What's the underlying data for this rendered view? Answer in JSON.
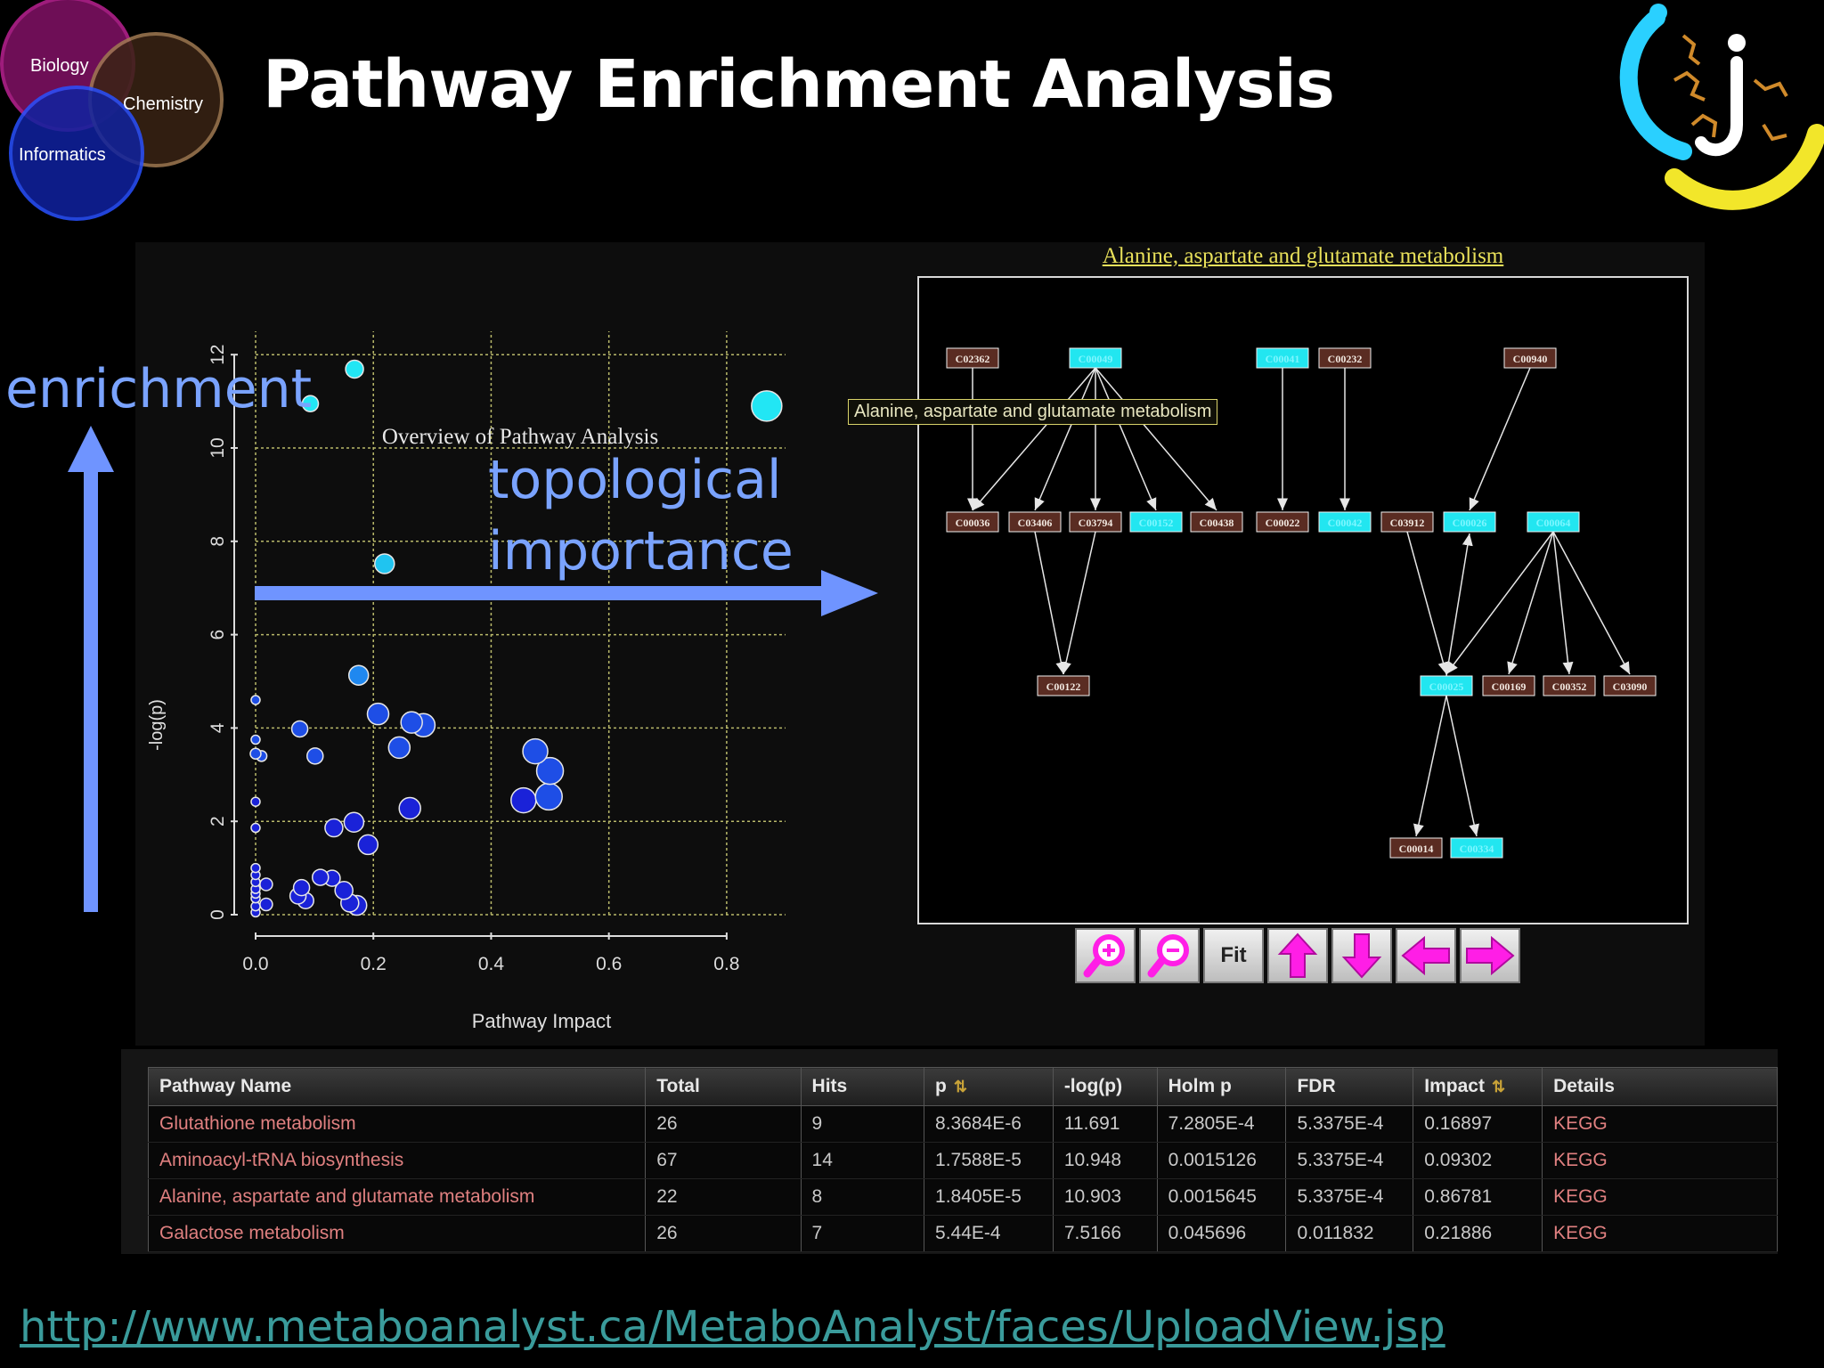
{
  "slide": {
    "title": "Pathway Enrichment Analysis",
    "url": "http://www.metaboanalyst.ca/MetaboAnalyst/faces/UploadView.jsp"
  },
  "venn": {
    "circles": [
      {
        "label": "Biology",
        "color": "#b0208a"
      },
      {
        "label": "Chemistry",
        "color": "#6b4a2a"
      },
      {
        "label": "Informatics",
        "color": "#1e3fd8"
      }
    ]
  },
  "annotations": {
    "enrichment": "enrichment",
    "topological_line1": "topological",
    "topological_line2": "importance",
    "arrow_color": "#6f94ff"
  },
  "chart_data": {
    "type": "scatter",
    "title": "Overview of Pathway Analysis",
    "xlabel": "Pathway Impact",
    "ylabel": "-log(p)",
    "xlim": [
      0,
      0.9
    ],
    "ylim": [
      0,
      12.5
    ],
    "xticks": [
      "0.0",
      "0.2",
      "0.4",
      "0.6",
      "0.8"
    ],
    "yticks": [
      "0",
      "2",
      "4",
      "6",
      "8",
      "10",
      "12"
    ],
    "grid": true,
    "points": [
      {
        "x": 0.168,
        "y": 11.69,
        "s": 10
      },
      {
        "x": 0.093,
        "y": 10.95,
        "s": 9
      },
      {
        "x": 0.868,
        "y": 10.9,
        "s": 17
      },
      {
        "x": 0.219,
        "y": 7.52,
        "s": 11
      },
      {
        "x": 0.175,
        "y": 5.13,
        "s": 11
      },
      {
        "x": 0.0,
        "y": 4.6,
        "s": 5
      },
      {
        "x": 0.208,
        "y": 4.3,
        "s": 12
      },
      {
        "x": 0.265,
        "y": 4.12,
        "s": 12
      },
      {
        "x": 0.285,
        "y": 4.06,
        "s": 13
      },
      {
        "x": 0.075,
        "y": 3.98,
        "s": 9
      },
      {
        "x": 0.0,
        "y": 3.75,
        "s": 5
      },
      {
        "x": 0.244,
        "y": 3.58,
        "s": 12
      },
      {
        "x": 0.475,
        "y": 3.5,
        "s": 14
      },
      {
        "x": 0.0,
        "y": 3.45,
        "s": 6
      },
      {
        "x": 0.01,
        "y": 3.4,
        "s": 6
      },
      {
        "x": 0.101,
        "y": 3.4,
        "s": 9
      },
      {
        "x": 0.5,
        "y": 3.08,
        "s": 15
      },
      {
        "x": 0.498,
        "y": 2.53,
        "s": 15
      },
      {
        "x": 0.455,
        "y": 2.45,
        "s": 14
      },
      {
        "x": 0.0,
        "y": 2.42,
        "s": 5
      },
      {
        "x": 0.262,
        "y": 2.28,
        "s": 12
      },
      {
        "x": 0.167,
        "y": 1.98,
        "s": 11
      },
      {
        "x": 0.133,
        "y": 1.86,
        "s": 10
      },
      {
        "x": 0.0,
        "y": 1.86,
        "s": 5
      },
      {
        "x": 0.191,
        "y": 1.5,
        "s": 11
      },
      {
        "x": 0.0,
        "y": 1.0,
        "s": 5
      },
      {
        "x": 0.0,
        "y": 0.85,
        "s": 5
      },
      {
        "x": 0.11,
        "y": 0.8,
        "s": 9
      },
      {
        "x": 0.13,
        "y": 0.78,
        "s": 9
      },
      {
        "x": 0.0,
        "y": 0.7,
        "s": 5
      },
      {
        "x": 0.018,
        "y": 0.65,
        "s": 7
      },
      {
        "x": 0.078,
        "y": 0.58,
        "s": 9
      },
      {
        "x": 0.15,
        "y": 0.52,
        "s": 10
      },
      {
        "x": 0.0,
        "y": 0.55,
        "s": 5
      },
      {
        "x": 0.072,
        "y": 0.4,
        "s": 9
      },
      {
        "x": 0.0,
        "y": 0.45,
        "s": 5
      },
      {
        "x": 0.085,
        "y": 0.3,
        "s": 9
      },
      {
        "x": 0.0,
        "y": 0.35,
        "s": 5
      },
      {
        "x": 0.16,
        "y": 0.25,
        "s": 10
      },
      {
        "x": 0.172,
        "y": 0.2,
        "s": 11
      },
      {
        "x": 0.018,
        "y": 0.22,
        "s": 7
      },
      {
        "x": 0.0,
        "y": 0.18,
        "s": 5
      },
      {
        "x": 0.0,
        "y": 0.05,
        "s": 5
      }
    ]
  },
  "network": {
    "title": "Alanine, aspartate and glutamate metabolism",
    "tooltip": "Alanine, aspartate and glutamate metabolism",
    "nodes": [
      {
        "id": "C02362",
        "label": "C02362",
        "hit": false
      },
      {
        "id": "C00049",
        "label": "C00049",
        "hit": true
      },
      {
        "id": "C00041",
        "label": "C00041",
        "hit": true
      },
      {
        "id": "C00232",
        "label": "C00232",
        "hit": false
      },
      {
        "id": "C00940",
        "label": "C00940",
        "hit": false
      },
      {
        "id": "C00036",
        "label": "C00036",
        "hit": false
      },
      {
        "id": "C03406",
        "label": "C03406",
        "hit": false
      },
      {
        "id": "C03794",
        "label": "C03794",
        "hit": false
      },
      {
        "id": "C00152",
        "label": "C00152",
        "hit": true
      },
      {
        "id": "C00438",
        "label": "C00438",
        "hit": false
      },
      {
        "id": "C00022",
        "label": "C00022",
        "hit": false
      },
      {
        "id": "C00042",
        "label": "C00042",
        "hit": true
      },
      {
        "id": "C03912",
        "label": "C03912",
        "hit": false
      },
      {
        "id": "C00026",
        "label": "C00026",
        "hit": true
      },
      {
        "id": "C00064",
        "label": "C00064",
        "hit": true
      },
      {
        "id": "C00122",
        "label": "C00122",
        "hit": false
      },
      {
        "id": "C00025",
        "label": "C00025",
        "hit": true
      },
      {
        "id": "C00169",
        "label": "C00169",
        "hit": false
      },
      {
        "id": "C00352",
        "label": "C00352",
        "hit": false
      },
      {
        "id": "C03090",
        "label": "C03090",
        "hit": false
      },
      {
        "id": "C00014",
        "label": "C00014",
        "hit": false
      },
      {
        "id": "C00334",
        "label": "C00334",
        "hit": true
      }
    ],
    "hit_color": "#22e6f0",
    "nonhit_color": "#5a2c22"
  },
  "toolbar": {
    "zoom_in": "zoom-in",
    "zoom_out": "zoom-out",
    "fit_label": "Fit",
    "up": "up",
    "down": "down",
    "left": "left",
    "right": "right",
    "icon_color": "#ff1ee6"
  },
  "table": {
    "headers": [
      "Pathway Name",
      "Total",
      "Hits",
      "p",
      "-log(p)",
      "Holm p",
      "FDR",
      "Impact",
      "Details"
    ],
    "rows": [
      [
        "Glutathione metabolism",
        "26",
        "9",
        "8.3684E-6",
        "11.691",
        "7.2805E-4",
        "5.3375E-4",
        "0.16897",
        "KEGG"
      ],
      [
        "Aminoacyl-tRNA biosynthesis",
        "67",
        "14",
        "1.7588E-5",
        "10.948",
        "0.0015126",
        "5.3375E-4",
        "0.09302",
        "KEGG"
      ],
      [
        "Alanine, aspartate and glutamate metabolism",
        "22",
        "8",
        "1.8405E-5",
        "10.903",
        "0.0015645",
        "5.3375E-4",
        "0.86781",
        "KEGG"
      ],
      [
        "Galactose metabolism",
        "26",
        "7",
        "5.44E-4",
        "7.5166",
        "0.045696",
        "0.011832",
        "0.21886",
        "KEGG"
      ]
    ]
  }
}
